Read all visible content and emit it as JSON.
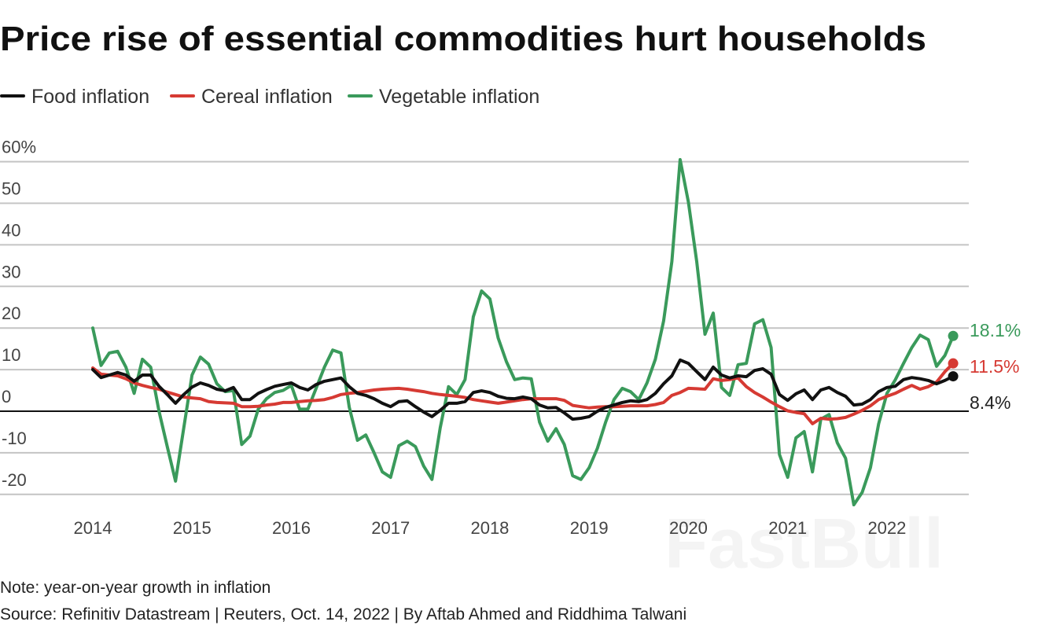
{
  "chart_data": {
    "type": "line",
    "title": "Price rise of essential commodities hurt households",
    "xlabel": "",
    "ylabel": "",
    "y_unit_label": "60%",
    "ylim": [
      -20,
      60
    ],
    "yticks": [
      60,
      50,
      40,
      30,
      20,
      10,
      0,
      -10,
      -20
    ],
    "ytick_labels": [
      "60%",
      "50",
      "40",
      "30",
      "20",
      "10",
      "0",
      "-10",
      "-20"
    ],
    "xtick_labels": [
      "2014",
      "2015",
      "2016",
      "2017",
      "2018",
      "2019",
      "2020",
      "2021",
      "2022"
    ],
    "grid": true,
    "legend_position": "top-left",
    "x": [
      "2014-01",
      "2014-02",
      "2014-03",
      "2014-04",
      "2014-05",
      "2014-06",
      "2014-07",
      "2014-08",
      "2014-09",
      "2014-10",
      "2014-11",
      "2014-12",
      "2015-01",
      "2015-02",
      "2015-03",
      "2015-04",
      "2015-05",
      "2015-06",
      "2015-07",
      "2015-08",
      "2015-09",
      "2015-10",
      "2015-11",
      "2015-12",
      "2016-01",
      "2016-02",
      "2016-03",
      "2016-04",
      "2016-05",
      "2016-06",
      "2016-07",
      "2016-08",
      "2016-09",
      "2016-10",
      "2016-11",
      "2016-12",
      "2017-01",
      "2017-02",
      "2017-03",
      "2017-04",
      "2017-05",
      "2017-06",
      "2017-07",
      "2017-08",
      "2017-09",
      "2017-10",
      "2017-11",
      "2017-12",
      "2018-01",
      "2018-02",
      "2018-03",
      "2018-04",
      "2018-05",
      "2018-06",
      "2018-07",
      "2018-08",
      "2018-09",
      "2018-10",
      "2018-11",
      "2018-12",
      "2019-01",
      "2019-02",
      "2019-03",
      "2019-04",
      "2019-05",
      "2019-06",
      "2019-07",
      "2019-08",
      "2019-09",
      "2019-10",
      "2019-11",
      "2019-12",
      "2020-01",
      "2020-02",
      "2020-03",
      "2020-04",
      "2020-05",
      "2020-06",
      "2020-07",
      "2020-08",
      "2020-09",
      "2020-10",
      "2020-11",
      "2020-12",
      "2021-01",
      "2021-02",
      "2021-03",
      "2021-04",
      "2021-05",
      "2021-06",
      "2021-07",
      "2021-08",
      "2021-09",
      "2021-10",
      "2021-11",
      "2021-12",
      "2022-01",
      "2022-02",
      "2022-03",
      "2022-04",
      "2022-05",
      "2022-06",
      "2022-07",
      "2022-08",
      "2022-09"
    ],
    "series": [
      {
        "name": "Food inflation",
        "color": "#111111",
        "end_label": "8.4%",
        "values": [
          10,
          8.1,
          8.7,
          9.3,
          8.7,
          7.2,
          8.7,
          8.7,
          6,
          4,
          1.9,
          4,
          5.8,
          6.8,
          6.2,
          5.3,
          4.9,
          5.7,
          2.8,
          2.8,
          4.3,
          5.2,
          6,
          6.4,
          6.8,
          5.7,
          5.1,
          6.4,
          7.2,
          7.6,
          8,
          5.9,
          4.3,
          3.8,
          3,
          1.9,
          1.1,
          2.3,
          2.5,
          1.1,
          -0.2,
          -1.3,
          0.2,
          1.9,
          1.9,
          2.3,
          4.5,
          4.9,
          4.5,
          3.6,
          3.1,
          3,
          3.4,
          3,
          1.5,
          0.8,
          0.9,
          -0.4,
          -1.9,
          -1.7,
          -1.3,
          0,
          0.9,
          1.5,
          2.1,
          2.5,
          2.3,
          2.8,
          4.3,
          6.6,
          8.5,
          12.3,
          11.5,
          9.5,
          7.6,
          10.6,
          8.7,
          8,
          8.5,
          8.3,
          9.8,
          10.2,
          8.9,
          4,
          2.6,
          4.2,
          5.1,
          2.8,
          5.1,
          5.7,
          4.5,
          3.6,
          1.5,
          1.7,
          2.8,
          4.7,
          5.7,
          6,
          7.6,
          8.1,
          7.8,
          7.4,
          6.6,
          7.4,
          8.4
        ]
      },
      {
        "name": "Cereal inflation",
        "color": "#d63a33",
        "end_label": "11.5%",
        "values": [
          10.4,
          8.9,
          8.7,
          8.5,
          7.8,
          6.8,
          6.2,
          5.7,
          5.3,
          4.6,
          4,
          3.4,
          3.2,
          3,
          2.3,
          2.1,
          2,
          1.9,
          1.1,
          1.1,
          1.2,
          1.5,
          1.7,
          2.1,
          2.1,
          2.3,
          2.5,
          2.6,
          2.8,
          3.3,
          4,
          4.3,
          4.5,
          4.8,
          5.1,
          5.3,
          5.4,
          5.5,
          5.3,
          5,
          4.7,
          4.3,
          4,
          3.8,
          3.6,
          3.3,
          2.8,
          2.5,
          2.2,
          1.9,
          2.2,
          2.5,
          2.8,
          3,
          3,
          3,
          3,
          2.6,
          1.4,
          1.1,
          0.8,
          1,
          1.1,
          1.1,
          1.2,
          1.3,
          1.3,
          1.3,
          1.6,
          2.1,
          3.8,
          4.5,
          5.5,
          5.4,
          5.3,
          7.8,
          7.4,
          7.6,
          8,
          5.9,
          4.5,
          3.4,
          2.2,
          1.1,
          0.1,
          -0.3,
          -0.6,
          -3,
          -1.7,
          -1.9,
          -1.8,
          -1.5,
          -0.7,
          0.2,
          1.3,
          2.8,
          3.6,
          4.3,
          5.3,
          6.2,
          5.3,
          5.9,
          7,
          9.5,
          11.5
        ]
      },
      {
        "name": "Vegetable inflation",
        "color": "#3a9a5b",
        "end_label": "18.1%",
        "values": [
          20,
          11,
          14,
          14.4,
          10.6,
          4.3,
          12.5,
          10.6,
          0,
          -8.5,
          -16.8,
          -4,
          8.7,
          13,
          11.3,
          6.6,
          4.7,
          5,
          -8,
          -6,
          0.5,
          3,
          4.5,
          5,
          6.2,
          0.5,
          0.5,
          5.5,
          10.6,
          14.7,
          14,
          1,
          -7,
          -5.7,
          -10,
          -14.6,
          -15.9,
          -8.3,
          -7.2,
          -8.5,
          -13.2,
          -16.4,
          -4,
          5.9,
          4,
          7.6,
          22.7,
          28.9,
          27,
          17.6,
          11.9,
          7.6,
          8,
          7.8,
          -2.6,
          -7.2,
          -4.2,
          -8,
          -15.5,
          -16.4,
          -13.6,
          -8.9,
          -2.6,
          2.8,
          5.5,
          4.7,
          2.8,
          6.8,
          12.5,
          21.7,
          36,
          60.5,
          50.3,
          36,
          18.5,
          23.6,
          5.7,
          3.8,
          11.2,
          11.5,
          21,
          22,
          15.3,
          -10.4,
          -15.9,
          -6.4,
          -4.9,
          -14.6,
          -1.9,
          -0.8,
          -7.6,
          -11.3,
          -22.5,
          -19.5,
          -13.6,
          -3,
          4.3,
          7.5,
          11.5,
          15.3,
          18.3,
          17.2,
          10.8,
          13.4,
          18.1
        ]
      }
    ]
  },
  "notes": {
    "note": "Note: year-on-year growth in inflation",
    "source": "Source: Refinitiv Datastream | Reuters, Oct. 14, 2022 | By Aftab Ahmed and Riddhima Talwani"
  },
  "watermark": "FastBull"
}
